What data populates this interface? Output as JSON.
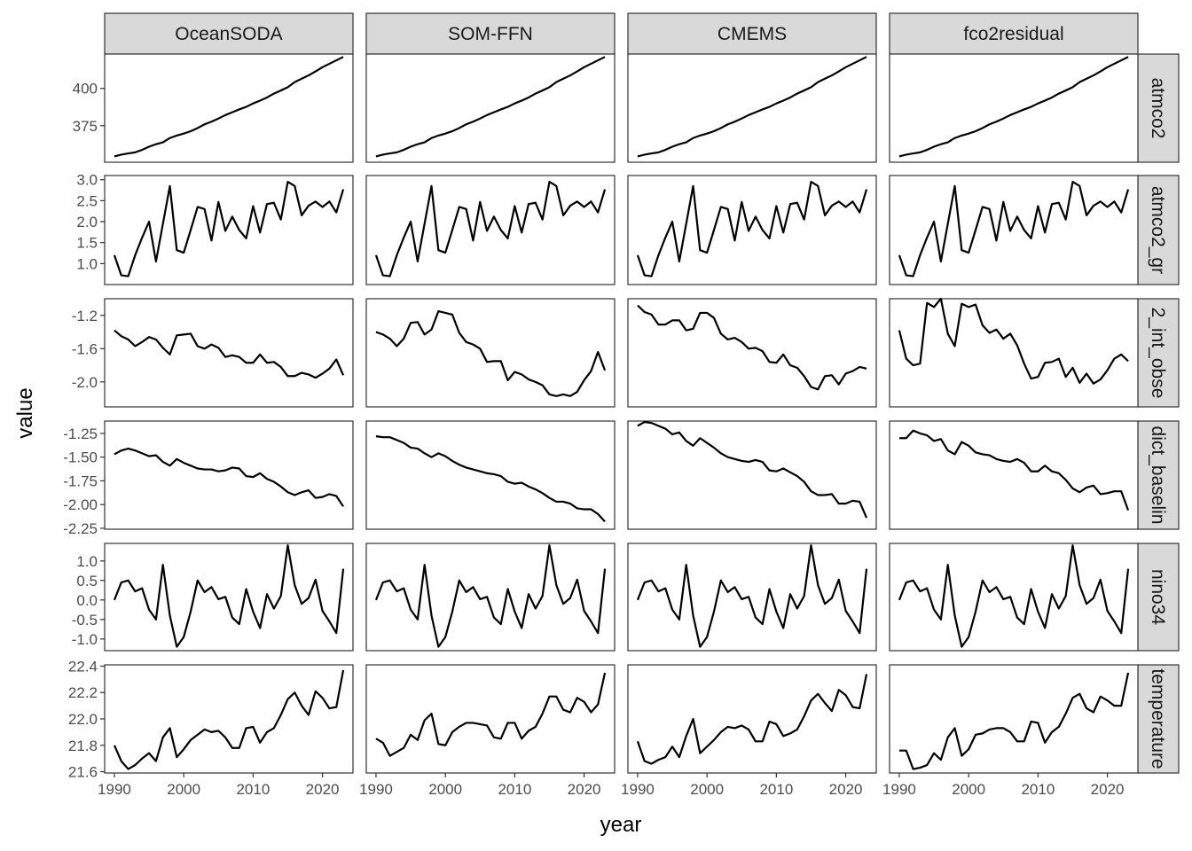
{
  "chart_data": {
    "type": "line",
    "xlabel": "year",
    "ylabel": "value",
    "x_ticks": [
      1990,
      2000,
      2010,
      2020
    ],
    "x_range": [
      1988.6,
      2024.4
    ],
    "columns": [
      "OceanSODA",
      "SOM-FFN",
      "CMEMS",
      "fco2residual"
    ],
    "rows": [
      {
        "label": "atmco2",
        "ylim": [
          350.5,
          423
        ],
        "yticks": [
          375,
          400
        ]
      },
      {
        "label": "atmco2_gr",
        "ylim": [
          0.5,
          3.1
        ],
        "yticks": [
          1.0,
          1.5,
          2.0,
          2.5,
          3.0
        ],
        "tick_decimals": 1
      },
      {
        "label": "2_int_obse",
        "ylim": [
          -2.3,
          -1.0
        ],
        "yticks": [
          -1.2,
          -1.6,
          -2.0
        ],
        "tick_decimals": 1
      },
      {
        "label": "dict_baselin",
        "ylim": [
          -2.26,
          -1.12
        ],
        "yticks": [
          -1.25,
          -1.5,
          -1.75,
          -2.0,
          -2.25
        ],
        "tick_decimals": 2
      },
      {
        "label": "nino34",
        "ylim": [
          -1.3,
          1.45
        ],
        "yticks": [
          1.0,
          0.5,
          0.0,
          -0.5,
          -1.0
        ],
        "tick_decimals": 1
      },
      {
        "label": "temperature",
        "ylim": [
          21.59,
          22.41
        ],
        "yticks": [
          22.4,
          22.2,
          22.0,
          21.8,
          21.6
        ],
        "tick_decimals": 1
      }
    ],
    "years": [
      1990,
      1991,
      1992,
      1993,
      1994,
      1995,
      1996,
      1997,
      1998,
      1999,
      2000,
      2001,
      2002,
      2003,
      2004,
      2005,
      2006,
      2007,
      2008,
      2009,
      2010,
      2011,
      2012,
      2013,
      2014,
      2015,
      2016,
      2017,
      2018,
      2019,
      2020,
      2021,
      2022,
      2023
    ],
    "panels": [
      [
        [
          354.4,
          355.6,
          356.4,
          357.1,
          358.8,
          360.9,
          362.6,
          363.8,
          366.7,
          368.4,
          369.7,
          371.3,
          373.4,
          375.9,
          377.7,
          379.8,
          382.1,
          384.0,
          385.9,
          387.6,
          389.9,
          391.8,
          393.9,
          396.5,
          398.6,
          400.8,
          404.2,
          406.5,
          408.7,
          411.4,
          414.2,
          416.5,
          418.8,
          421.1
        ],
        [
          1.2,
          0.72,
          0.7,
          1.2,
          1.62,
          2.0,
          1.05,
          1.95,
          2.85,
          1.32,
          1.26,
          1.8,
          2.35,
          2.3,
          1.55,
          2.47,
          1.78,
          2.12,
          1.8,
          1.6,
          2.37,
          1.74,
          2.42,
          2.45,
          2.05,
          2.95,
          2.85,
          2.15,
          2.38,
          2.48,
          2.35,
          2.48,
          2.22,
          2.77
        ],
        [
          -1.38,
          -1.45,
          -1.49,
          -1.57,
          -1.52,
          -1.46,
          -1.49,
          -1.59,
          -1.67,
          -1.44,
          -1.43,
          -1.42,
          -1.57,
          -1.6,
          -1.55,
          -1.59,
          -1.7,
          -1.68,
          -1.7,
          -1.77,
          -1.77,
          -1.67,
          -1.77,
          -1.76,
          -1.82,
          -1.93,
          -1.93,
          -1.89,
          -1.91,
          -1.95,
          -1.9,
          -1.84,
          -1.73,
          -1.92
        ],
        [
          -1.47,
          -1.43,
          -1.41,
          -1.43,
          -1.46,
          -1.49,
          -1.48,
          -1.55,
          -1.59,
          -1.52,
          -1.56,
          -1.59,
          -1.62,
          -1.63,
          -1.63,
          -1.65,
          -1.64,
          -1.61,
          -1.62,
          -1.7,
          -1.71,
          -1.67,
          -1.73,
          -1.76,
          -1.81,
          -1.87,
          -1.9,
          -1.87,
          -1.85,
          -1.93,
          -1.92,
          -1.89,
          -1.91,
          -2.02
        ],
        [
          0.0,
          0.45,
          0.5,
          0.22,
          0.3,
          -0.25,
          -0.5,
          0.9,
          -0.4,
          -1.2,
          -0.95,
          -0.3,
          0.5,
          0.2,
          0.33,
          0.02,
          0.08,
          -0.45,
          -0.62,
          0.28,
          -0.3,
          -0.72,
          0.15,
          -0.22,
          0.1,
          1.4,
          0.38,
          -0.1,
          0.05,
          0.52,
          -0.28,
          -0.55,
          -0.85,
          0.8
        ],
        [
          21.8,
          21.68,
          21.62,
          21.65,
          21.7,
          21.74,
          21.68,
          21.86,
          21.93,
          21.71,
          21.77,
          21.84,
          21.88,
          21.92,
          21.9,
          21.91,
          21.86,
          21.78,
          21.78,
          21.93,
          21.94,
          21.82,
          21.9,
          21.93,
          22.03,
          22.15,
          22.2,
          22.1,
          22.03,
          22.21,
          22.16,
          22.08,
          22.09,
          22.37
        ]
      ],
      [
        [
          354.4,
          355.6,
          356.4,
          357.1,
          358.8,
          360.9,
          362.6,
          363.8,
          366.7,
          368.4,
          369.7,
          371.3,
          373.4,
          375.9,
          377.7,
          379.8,
          382.1,
          384.0,
          385.9,
          387.6,
          389.9,
          391.8,
          393.9,
          396.5,
          398.6,
          400.8,
          404.2,
          406.5,
          408.7,
          411.4,
          414.2,
          416.5,
          418.8,
          421.1
        ],
        [
          1.2,
          0.72,
          0.7,
          1.2,
          1.62,
          2.0,
          1.05,
          1.95,
          2.85,
          1.32,
          1.26,
          1.8,
          2.35,
          2.3,
          1.55,
          2.47,
          1.78,
          2.12,
          1.8,
          1.6,
          2.37,
          1.74,
          2.42,
          2.45,
          2.05,
          2.95,
          2.85,
          2.15,
          2.38,
          2.48,
          2.35,
          2.48,
          2.22,
          2.77
        ],
        [
          -1.4,
          -1.43,
          -1.48,
          -1.57,
          -1.48,
          -1.29,
          -1.28,
          -1.43,
          -1.37,
          -1.15,
          -1.17,
          -1.19,
          -1.41,
          -1.52,
          -1.55,
          -1.6,
          -1.76,
          -1.75,
          -1.75,
          -1.98,
          -1.88,
          -1.91,
          -1.97,
          -2.0,
          -2.04,
          -2.15,
          -2.17,
          -2.15,
          -2.17,
          -2.12,
          -1.98,
          -1.87,
          -1.64,
          -1.86
        ],
        [
          -1.28,
          -1.29,
          -1.29,
          -1.32,
          -1.35,
          -1.4,
          -1.41,
          -1.46,
          -1.5,
          -1.46,
          -1.49,
          -1.54,
          -1.58,
          -1.61,
          -1.63,
          -1.65,
          -1.67,
          -1.68,
          -1.7,
          -1.76,
          -1.78,
          -1.77,
          -1.81,
          -1.84,
          -1.88,
          -1.93,
          -1.97,
          -1.97,
          -1.99,
          -2.04,
          -2.05,
          -2.05,
          -2.1,
          -2.18
        ],
        [
          0.0,
          0.45,
          0.5,
          0.22,
          0.3,
          -0.25,
          -0.5,
          0.9,
          -0.4,
          -1.2,
          -0.95,
          -0.3,
          0.5,
          0.2,
          0.33,
          0.02,
          0.08,
          -0.45,
          -0.62,
          0.28,
          -0.3,
          -0.72,
          0.15,
          -0.22,
          0.1,
          1.4,
          0.38,
          -0.1,
          0.05,
          0.52,
          -0.28,
          -0.55,
          -0.85,
          0.8
        ],
        [
          21.85,
          21.82,
          21.72,
          21.75,
          21.78,
          21.88,
          21.84,
          21.99,
          22.04,
          21.81,
          21.8,
          21.9,
          21.94,
          21.97,
          21.97,
          21.96,
          21.95,
          21.86,
          21.85,
          21.97,
          21.97,
          21.85,
          21.91,
          21.94,
          22.04,
          22.17,
          22.17,
          22.07,
          22.05,
          22.16,
          22.13,
          22.05,
          22.11,
          22.35
        ]
      ],
      [
        [
          354.4,
          355.6,
          356.4,
          357.1,
          358.8,
          360.9,
          362.6,
          363.8,
          366.7,
          368.4,
          369.7,
          371.3,
          373.4,
          375.9,
          377.7,
          379.8,
          382.1,
          384.0,
          385.9,
          387.6,
          389.9,
          391.8,
          393.9,
          396.5,
          398.6,
          400.8,
          404.2,
          406.5,
          408.7,
          411.4,
          414.2,
          416.5,
          418.8,
          421.1
        ],
        [
          1.2,
          0.72,
          0.7,
          1.2,
          1.62,
          2.0,
          1.05,
          1.95,
          2.85,
          1.32,
          1.26,
          1.8,
          2.35,
          2.3,
          1.55,
          2.47,
          1.78,
          2.12,
          1.8,
          1.6,
          2.37,
          1.74,
          2.42,
          2.45,
          2.05,
          2.95,
          2.85,
          2.15,
          2.38,
          2.48,
          2.35,
          2.48,
          2.22,
          2.77
        ],
        [
          -1.08,
          -1.16,
          -1.19,
          -1.31,
          -1.31,
          -1.26,
          -1.26,
          -1.38,
          -1.36,
          -1.17,
          -1.17,
          -1.23,
          -1.42,
          -1.49,
          -1.47,
          -1.52,
          -1.6,
          -1.59,
          -1.63,
          -1.76,
          -1.77,
          -1.67,
          -1.8,
          -1.83,
          -1.93,
          -2.06,
          -2.09,
          -1.93,
          -1.92,
          -2.03,
          -1.9,
          -1.87,
          -1.82,
          -1.84
        ],
        [
          -1.17,
          -1.13,
          -1.14,
          -1.17,
          -1.2,
          -1.26,
          -1.24,
          -1.33,
          -1.38,
          -1.3,
          -1.35,
          -1.4,
          -1.46,
          -1.5,
          -1.52,
          -1.54,
          -1.55,
          -1.53,
          -1.55,
          -1.64,
          -1.65,
          -1.62,
          -1.66,
          -1.7,
          -1.76,
          -1.86,
          -1.9,
          -1.9,
          -1.89,
          -1.99,
          -1.99,
          -1.96,
          -1.97,
          -2.14
        ],
        [
          0.0,
          0.45,
          0.5,
          0.22,
          0.3,
          -0.25,
          -0.5,
          0.9,
          -0.4,
          -1.2,
          -0.95,
          -0.3,
          0.5,
          0.2,
          0.33,
          0.02,
          0.08,
          -0.45,
          -0.62,
          0.28,
          -0.3,
          -0.72,
          0.15,
          -0.22,
          0.1,
          1.4,
          0.38,
          -0.1,
          0.05,
          0.52,
          -0.28,
          -0.55,
          -0.85,
          0.8
        ],
        [
          21.83,
          21.68,
          21.66,
          21.69,
          21.71,
          21.79,
          21.71,
          21.87,
          22.0,
          21.74,
          21.79,
          21.84,
          21.9,
          21.94,
          21.93,
          21.95,
          21.92,
          21.83,
          21.83,
          21.98,
          21.96,
          21.87,
          21.89,
          21.92,
          22.02,
          22.14,
          22.19,
          22.12,
          22.06,
          22.22,
          22.18,
          22.09,
          22.08,
          22.34
        ]
      ],
      [
        [
          354.4,
          355.6,
          356.4,
          357.1,
          358.8,
          360.9,
          362.6,
          363.8,
          366.7,
          368.4,
          369.7,
          371.3,
          373.4,
          375.9,
          377.7,
          379.8,
          382.1,
          384.0,
          385.9,
          387.6,
          389.9,
          391.8,
          393.9,
          396.5,
          398.6,
          400.8,
          404.2,
          406.5,
          408.7,
          411.4,
          414.2,
          416.5,
          418.8,
          421.1
        ],
        [
          1.2,
          0.72,
          0.7,
          1.2,
          1.62,
          2.0,
          1.05,
          1.95,
          2.85,
          1.32,
          1.26,
          1.8,
          2.35,
          2.3,
          1.55,
          2.47,
          1.78,
          2.12,
          1.8,
          1.6,
          2.37,
          1.74,
          2.42,
          2.45,
          2.05,
          2.95,
          2.85,
          2.15,
          2.38,
          2.48,
          2.35,
          2.48,
          2.22,
          2.77
        ],
        [
          -1.38,
          -1.72,
          -1.8,
          -1.78,
          -1.05,
          -1.1,
          -1.0,
          -1.42,
          -1.57,
          -1.06,
          -1.1,
          -1.07,
          -1.32,
          -1.41,
          -1.37,
          -1.48,
          -1.42,
          -1.56,
          -1.78,
          -1.96,
          -1.94,
          -1.77,
          -1.76,
          -1.72,
          -1.94,
          -1.83,
          -2.01,
          -1.9,
          -2.02,
          -1.97,
          -1.86,
          -1.72,
          -1.67,
          -1.75
        ],
        [
          -1.3,
          -1.3,
          -1.22,
          -1.25,
          -1.27,
          -1.33,
          -1.31,
          -1.43,
          -1.47,
          -1.34,
          -1.38,
          -1.45,
          -1.47,
          -1.48,
          -1.52,
          -1.54,
          -1.55,
          -1.52,
          -1.56,
          -1.65,
          -1.65,
          -1.59,
          -1.65,
          -1.67,
          -1.74,
          -1.83,
          -1.87,
          -1.82,
          -1.8,
          -1.89,
          -1.88,
          -1.86,
          -1.86,
          -2.06
        ],
        [
          0.0,
          0.45,
          0.5,
          0.22,
          0.3,
          -0.25,
          -0.5,
          0.9,
          -0.4,
          -1.2,
          -0.95,
          -0.3,
          0.5,
          0.2,
          0.33,
          0.02,
          0.08,
          -0.45,
          -0.62,
          0.28,
          -0.3,
          -0.72,
          0.15,
          -0.22,
          0.1,
          1.4,
          0.38,
          -0.1,
          0.05,
          0.52,
          -0.28,
          -0.55,
          -0.85,
          0.8
        ],
        [
          21.76,
          21.76,
          21.62,
          21.63,
          21.65,
          21.74,
          21.69,
          21.86,
          21.93,
          21.72,
          21.77,
          21.88,
          21.89,
          21.92,
          21.93,
          21.93,
          21.9,
          21.83,
          21.83,
          21.98,
          21.97,
          21.82,
          21.9,
          21.94,
          22.04,
          22.16,
          22.19,
          22.08,
          22.05,
          22.17,
          22.14,
          22.1,
          22.1,
          22.35
        ]
      ]
    ]
  }
}
